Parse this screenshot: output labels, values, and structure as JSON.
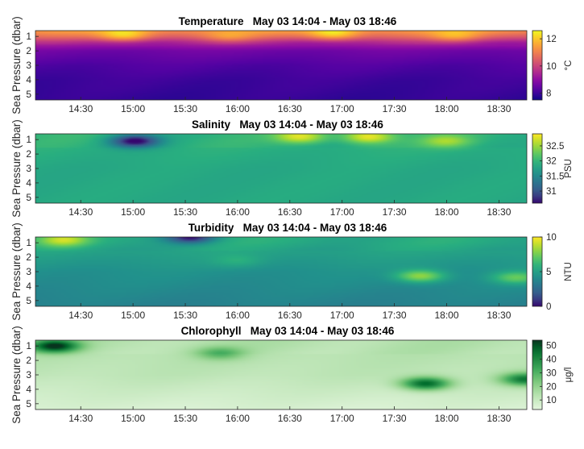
{
  "chart_data": [
    {
      "type": "heatmap",
      "title": "Temperature   May 03 14:04 - May 03 18:46",
      "ylabel": "Sea Pressure (dbar)",
      "colorbar_label": "°C",
      "colormap": "plasma",
      "x_ticks": [
        "14:30",
        "15:00",
        "15:30",
        "16:00",
        "16:30",
        "17:00",
        "17:30",
        "18:00",
        "18:30"
      ],
      "y_ticks": [
        1,
        2,
        3,
        4,
        5
      ],
      "xlim": [
        "14:04",
        "18:46"
      ],
      "ylim": [
        0.6,
        5.4
      ],
      "clim": [
        7.5,
        12.6
      ],
      "colorbar_ticks": [
        8,
        10,
        12
      ],
      "features": [
        {
          "time": "14:55",
          "pressure": 0.8,
          "value": 12.4
        },
        {
          "time": "16:55",
          "pressure": 0.7,
          "value": 12.6
        },
        {
          "time": "18:05",
          "pressure": 0.8,
          "value": 11.8
        },
        {
          "time": "15:55",
          "pressure": 0.8,
          "value": 11.5
        }
      ],
      "profile": [
        {
          "pressure": 0.7,
          "value": 11.2
        },
        {
          "pressure": 1.0,
          "value": 10.6
        },
        {
          "pressure": 1.4,
          "value": 9.5
        },
        {
          "pressure": 2.0,
          "value": 8.6
        },
        {
          "pressure": 3.0,
          "value": 8.2
        },
        {
          "pressure": 4.0,
          "value": 8.0
        },
        {
          "pressure": 5.3,
          "value": 7.9
        }
      ]
    },
    {
      "type": "heatmap",
      "title": "Salinity   May 03 14:04 - May 03 18:46",
      "ylabel": "Sea Pressure (dbar)",
      "colorbar_label": "PSU",
      "colormap": "viridis",
      "x_ticks": [
        "14:30",
        "15:00",
        "15:30",
        "16:00",
        "16:30",
        "17:00",
        "17:30",
        "18:00",
        "18:30"
      ],
      "y_ticks": [
        1,
        2,
        3,
        4,
        5
      ],
      "xlim": [
        "14:04",
        "18:46"
      ],
      "ylim": [
        0.6,
        5.4
      ],
      "clim": [
        30.6,
        32.9
      ],
      "colorbar_ticks": [
        31,
        31.5,
        32,
        32.5
      ],
      "features": [
        {
          "time": "15:01",
          "pressure": 1.1,
          "value": 30.6
        },
        {
          "time": "16:36",
          "pressure": 0.8,
          "value": 32.8
        },
        {
          "time": "17:15",
          "pressure": 0.8,
          "value": 32.9
        },
        {
          "time": "18:00",
          "pressure": 1.1,
          "value": 32.5
        }
      ],
      "profile": [
        {
          "pressure": 1.0,
          "value": 31.95
        },
        {
          "pressure": 2.0,
          "value": 31.9
        },
        {
          "pressure": 3.0,
          "value": 31.85
        },
        {
          "pressure": 5.3,
          "value": 31.85
        }
      ]
    },
    {
      "type": "heatmap",
      "title": "Turbidity   May 03 14:04 - May 03 18:46",
      "ylabel": "Sea Pressure (dbar)",
      "colorbar_label": "NTU",
      "colormap": "viridis",
      "x_ticks": [
        "14:30",
        "15:00",
        "15:30",
        "16:00",
        "16:30",
        "17:00",
        "17:30",
        "18:00",
        "18:30"
      ],
      "y_ticks": [
        1,
        2,
        3,
        4,
        5
      ],
      "xlim": [
        "14:04",
        "18:46"
      ],
      "ylim": [
        0.6,
        5.4
      ],
      "clim": [
        0,
        10
      ],
      "colorbar_ticks": [
        0,
        5,
        10
      ],
      "features": [
        {
          "time": "14:20",
          "pressure": 0.8,
          "value": 9.0
        },
        {
          "time": "15:33",
          "pressure": 0.6,
          "value": 0.3
        },
        {
          "time": "17:45",
          "pressure": 3.3,
          "value": 8.2
        },
        {
          "time": "18:40",
          "pressure": 3.4,
          "value": 7.2
        },
        {
          "time": "16:00",
          "pressure": 2.2,
          "value": 5.8
        }
      ],
      "profile": [
        {
          "pressure": 1.0,
          "value": 5.5
        },
        {
          "pressure": 3.0,
          "value": 4.3
        },
        {
          "pressure": 5.3,
          "value": 3.6
        }
      ]
    },
    {
      "type": "heatmap",
      "title": "Chlorophyll   May 03 14:04 - May 03 18:46",
      "ylabel": "Sea Pressure (dbar)",
      "colorbar_label": "μg/l",
      "colormap": "greens",
      "x_ticks": [
        "14:30",
        "15:00",
        "15:30",
        "16:00",
        "16:30",
        "17:00",
        "17:30",
        "18:00",
        "18:30"
      ],
      "y_ticks": [
        1,
        2,
        3,
        4,
        5
      ],
      "xlim": [
        "14:04",
        "18:46"
      ],
      "ylim": [
        0.6,
        5.4
      ],
      "clim": [
        3,
        54
      ],
      "colorbar_ticks": [
        10,
        20,
        30,
        40,
        50
      ],
      "features": [
        {
          "time": "14:15",
          "pressure": 1.0,
          "value": 55
        },
        {
          "time": "17:48",
          "pressure": 3.6,
          "value": 48
        },
        {
          "time": "18:45",
          "pressure": 3.3,
          "value": 44
        },
        {
          "time": "15:50",
          "pressure": 1.5,
          "value": 30
        }
      ],
      "profile": [
        {
          "pressure": 1.0,
          "value": 14
        },
        {
          "pressure": 3.0,
          "value": 12
        },
        {
          "pressure": 5.3,
          "value": 6
        }
      ]
    }
  ]
}
